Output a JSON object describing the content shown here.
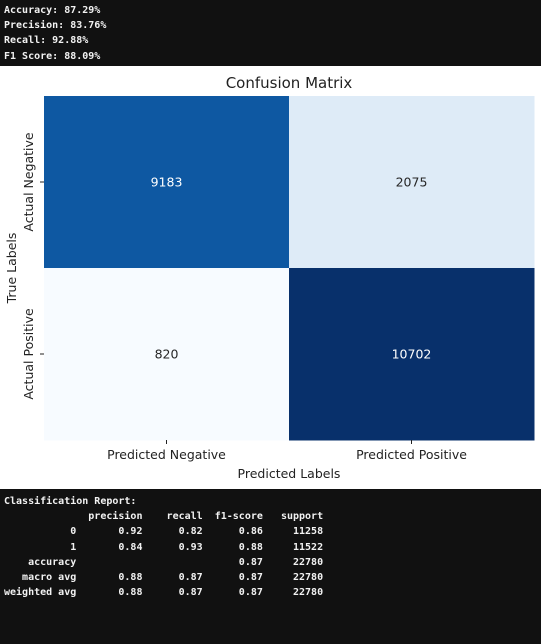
{
  "metrics": [
    "Accuracy: 87.29%",
    "Precision: 83.76%",
    "Recall: 92.88%",
    "F1 Score: 88.09%"
  ],
  "chart_data": {
    "type": "heatmap",
    "title": "Confusion Matrix",
    "xlabel": "Predicted Labels",
    "ylabel": "True Labels",
    "x_categories": [
      "Predicted Negative",
      "Predicted Positive"
    ],
    "y_categories": [
      "Actual Negative",
      "Actual Positive"
    ],
    "values": [
      [
        9183,
        2075
      ],
      [
        820,
        10702
      ]
    ],
    "colormap": "Blues",
    "colorbar": false
  },
  "report": [
    "Classification Report:",
    "              precision    recall  f1-score   support",
    "",
    "           0       0.92      0.82      0.86     11258",
    "           1       0.84      0.93      0.88     11522",
    "",
    "    accuracy                           0.87     22780",
    "   macro avg       0.88      0.87      0.87     22780",
    "weighted avg       0.88      0.87      0.87     22780"
  ]
}
